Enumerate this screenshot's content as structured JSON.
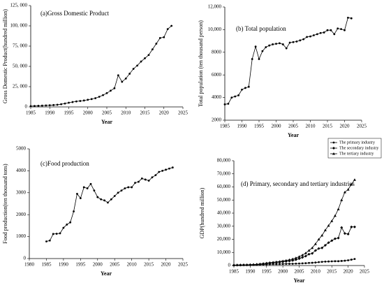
{
  "chart_data": [
    {
      "type": "line",
      "title": "(a)Gross Domestic Product",
      "xlabel": "Year",
      "ylabel": "Gross Domestic Product(hundred million)",
      "x": [
        1985,
        1986,
        1987,
        1988,
        1989,
        1990,
        1991,
        1992,
        1993,
        1994,
        1995,
        1996,
        1997,
        1998,
        1999,
        2000,
        2001,
        2002,
        2003,
        2004,
        2005,
        2006,
        2007,
        2008,
        2009,
        2010,
        2011,
        2012,
        2013,
        2014,
        2015,
        2016,
        2017,
        2018,
        2019,
        2020,
        2021,
        2022
      ],
      "series": [
        {
          "color": "#000000",
          "marker": "circle",
          "values": [
            1000,
            1200,
            1400,
            1600,
            1800,
            2000,
            2300,
            2700,
            3300,
            4200,
            5200,
            6000,
            6800,
            7300,
            7900,
            8800,
            9700,
            10800,
            12500,
            14500,
            17000,
            20000,
            23000,
            39000,
            31000,
            35000,
            41000,
            47000,
            51000,
            56000,
            60000,
            64000,
            71000,
            78000,
            85000,
            86000,
            96000,
            100000
          ]
        }
      ],
      "xlim": [
        1985,
        2025
      ],
      "xticks": [
        1985,
        1990,
        1995,
        2000,
        2005,
        2010,
        2015,
        2020,
        2025
      ],
      "ylim": [
        0,
        125000
      ],
      "yticks": [
        0,
        {
          "value": 25000,
          "label": "25, 000"
        },
        {
          "value": 50000,
          "label": "50, 000"
        },
        {
          "value": 75000,
          "label": "75, 000"
        },
        {
          "value": 100000,
          "label": "100, 000"
        },
        {
          "value": 125000,
          "label": "125, 000"
        }
      ]
    },
    {
      "type": "line",
      "title": "(b) Total population",
      "xlabel": "Year",
      "ylabel": "Total population (ten thousand person)",
      "x": [
        1985,
        1986,
        1987,
        1988,
        1989,
        1990,
        1991,
        1992,
        1993,
        1994,
        1995,
        1996,
        1997,
        1998,
        1999,
        2000,
        2001,
        2002,
        2003,
        2004,
        2005,
        2006,
        2007,
        2008,
        2009,
        2010,
        2011,
        2012,
        2013,
        2014,
        2015,
        2016,
        2017,
        2018,
        2019,
        2020,
        2021,
        2022
      ],
      "series": [
        {
          "color": "#000000",
          "marker": "circle",
          "values": [
            3400,
            3450,
            4000,
            4100,
            4200,
            4700,
            4850,
            4950,
            7400,
            8500,
            7400,
            8100,
            8450,
            8600,
            8700,
            8750,
            8800,
            8700,
            8350,
            8850,
            8900,
            8950,
            9050,
            9150,
            9350,
            9400,
            9500,
            9600,
            9700,
            9750,
            9950,
            9950,
            9600,
            10100,
            10050,
            9950,
            11050,
            11000
          ]
        }
      ],
      "xlim": [
        1985,
        2025
      ],
      "xticks": [
        1985,
        1990,
        1995,
        2000,
        2005,
        2010,
        2015,
        2020,
        2025
      ],
      "ylim": [
        2000,
        12000
      ],
      "yticks": [
        2000,
        4000,
        6000,
        8000,
        {
          "value": 10000,
          "label": "10,000"
        },
        {
          "value": 12000,
          "label": "12,000"
        }
      ]
    },
    {
      "type": "line",
      "title": "(c)Food production",
      "xlabel": "Year",
      "ylabel": "Food production(ten thousand tons)",
      "x": [
        1985,
        1986,
        1987,
        1988,
        1989,
        1990,
        1991,
        1992,
        1993,
        1994,
        1995,
        1996,
        1997,
        1998,
        1999,
        2000,
        2001,
        2002,
        2003,
        2004,
        2005,
        2006,
        2007,
        2008,
        2009,
        2010,
        2011,
        2012,
        2013,
        2014,
        2015,
        2016,
        2017,
        2018,
        2019,
        2020,
        2021,
        2022
      ],
      "series": [
        {
          "color": "#000000",
          "marker": "circle",
          "values": [
            780,
            820,
            1120,
            1130,
            1150,
            1400,
            1550,
            1650,
            2150,
            2950,
            2750,
            3250,
            3200,
            3400,
            3100,
            2800,
            2700,
            2650,
            2550,
            2700,
            2850,
            3000,
            3100,
            3200,
            3250,
            3250,
            3450,
            3500,
            3650,
            3600,
            3550,
            3700,
            3800,
            3950,
            4000,
            4050,
            4100,
            4150
          ]
        }
      ],
      "xlim": [
        1980,
        2025
      ],
      "xticks": [
        1980,
        1985,
        1990,
        1995,
        2000,
        2005,
        2010,
        2015,
        2020,
        2025
      ],
      "ylim": [
        0,
        5000
      ],
      "yticks": [
        0,
        1000,
        2000,
        3000,
        4000,
        5000
      ]
    },
    {
      "type": "line",
      "title": "(d) Primary, secondary and tertiary industries",
      "xlabel": "Year",
      "ylabel": "GDP(hundred million)",
      "legend": "top-right",
      "x": [
        1985,
        1986,
        1987,
        1988,
        1989,
        1990,
        1991,
        1992,
        1993,
        1994,
        1995,
        1996,
        1997,
        1998,
        1999,
        2000,
        2001,
        2002,
        2003,
        2004,
        2005,
        2006,
        2007,
        2008,
        2009,
        2010,
        2011,
        2012,
        2013,
        2014,
        2015,
        2016,
        2017,
        2018,
        2019,
        2020,
        2021,
        2022
      ],
      "series": [
        {
          "name": "The primary industry",
          "color": "#000000",
          "marker": "circle",
          "values": [
            200,
            250,
            300,
            350,
            400,
            450,
            500,
            550,
            650,
            750,
            900,
            1000,
            1050,
            1100,
            1150,
            1200,
            1250,
            1300,
            1350,
            1450,
            1550,
            1650,
            1800,
            2000,
            2100,
            2300,
            2600,
            2800,
            3000,
            3100,
            3200,
            3300,
            3300,
            3500,
            3700,
            4000,
            4500,
            5000
          ]
        },
        {
          "name": "The secondary industry",
          "color": "#000000",
          "marker": "diamond",
          "values": [
            300,
            350,
            400,
            450,
            500,
            600,
            700,
            850,
            1100,
            1400,
            1700,
            2000,
            2200,
            2400,
            2600,
            2900,
            3200,
            3500,
            3900,
            4500,
            5300,
            6200,
            7200,
            8700,
            9300,
            11500,
            13000,
            13500,
            15500,
            17500,
            19000,
            20500,
            21000,
            29000,
            24500,
            24000,
            29500,
            29500
          ]
        },
        {
          "name": "The tertiary industry",
          "color": "#000000",
          "marker": "triangle",
          "values": [
            400,
            450,
            500,
            550,
            600,
            700,
            800,
            950,
            1200,
            1500,
            1900,
            2200,
            2500,
            2800,
            3100,
            3500,
            3900,
            4400,
            5000,
            5800,
            6800,
            8000,
            9500,
            11500,
            13500,
            16500,
            20000,
            23000,
            27000,
            30500,
            34000,
            38000,
            43000,
            50000,
            56000,
            58000,
            62000,
            65500
          ]
        }
      ],
      "xlim": [
        1985,
        2025
      ],
      "xticks": [
        1985,
        1990,
        1995,
        2000,
        2005,
        2010,
        2015,
        2020,
        2025
      ],
      "ylim": [
        0,
        80000
      ],
      "yticks": [
        0,
        {
          "value": 10000,
          "label": "10,000"
        },
        {
          "value": 20000,
          "label": "20,000"
        },
        {
          "value": 30000,
          "label": "30,000"
        },
        {
          "value": 40000,
          "label": "40,000"
        },
        {
          "value": 50000,
          "label": "50,000"
        },
        {
          "value": 60000,
          "label": "60,000"
        },
        {
          "value": 70000,
          "label": "70,000"
        },
        {
          "value": 80000,
          "label": "80,000"
        }
      ]
    }
  ]
}
